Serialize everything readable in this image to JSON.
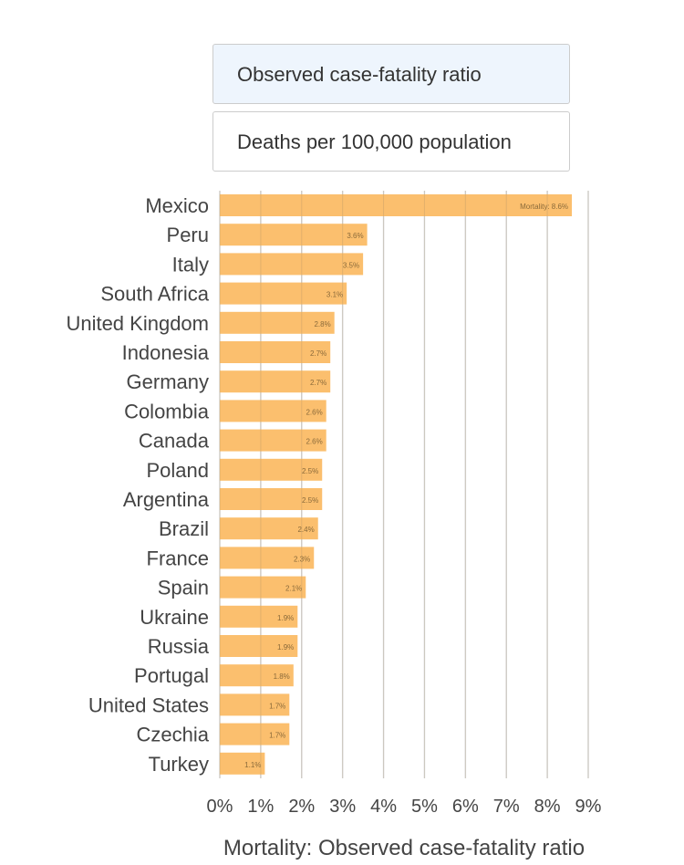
{
  "buttons": {
    "cfr": "Observed case-fatality ratio",
    "per100k": "Deaths per 100,000 population"
  },
  "chart_data": {
    "type": "bar",
    "orientation": "horizontal",
    "categories": [
      "Mexico",
      "Peru",
      "Italy",
      "South Africa",
      "United Kingdom",
      "Indonesia",
      "Germany",
      "Colombia",
      "Canada",
      "Poland",
      "Argentina",
      "Brazil",
      "France",
      "Spain",
      "Ukraine",
      "Russia",
      "Portugal",
      "United States",
      "Czechia",
      "Turkey"
    ],
    "values": [
      8.6,
      3.6,
      3.5,
      3.1,
      2.8,
      2.7,
      2.7,
      2.6,
      2.6,
      2.5,
      2.5,
      2.4,
      2.3,
      2.1,
      1.9,
      1.9,
      1.8,
      1.7,
      1.7,
      1.1
    ],
    "data_labels": [
      "Mortality: 8.6%",
      "3.6%",
      "3.5%",
      "3.1%",
      "2.8%",
      "2.7%",
      "2.7%",
      "2.6%",
      "2.6%",
      "2.5%",
      "2.5%",
      "2.4%",
      "2.3%",
      "2.1%",
      "1.9%",
      "1.9%",
      "1.8%",
      "1.7%",
      "1.7%",
      "1.1%"
    ],
    "xticks": [
      "0%",
      "1%",
      "2%",
      "3%",
      "4%",
      "5%",
      "6%",
      "7%",
      "8%",
      "9%"
    ],
    "xlim": [
      0,
      9
    ],
    "xlabel": "Mortality: Observed case-fatality ratio",
    "grid": true,
    "bar_color": "#fbbf6e"
  }
}
